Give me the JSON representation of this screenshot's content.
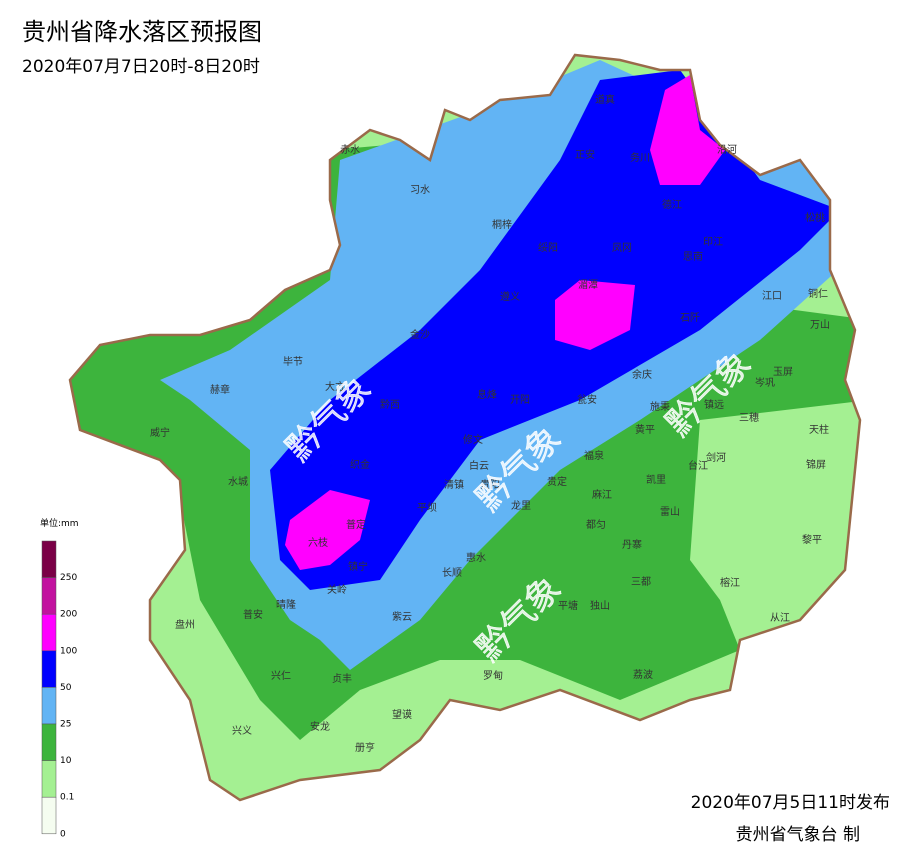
{
  "header": {
    "title": "贵州省降水落区预报图",
    "subtitle": "2020年07月7日20时-8日20时"
  },
  "legend": {
    "unit": "单位:mm",
    "levels": [
      {
        "label": "250",
        "color": "#7a0046"
      },
      {
        "label": "200",
        "color": "#c2129f"
      },
      {
        "label": "100",
        "color": "#ff00ff"
      },
      {
        "label": "50",
        "color": "#0000ff"
      },
      {
        "label": "25",
        "color": "#62b4f4"
      },
      {
        "label": "10",
        "color": "#3db43d"
      },
      {
        "label": "0.1",
        "color": "#a4f092"
      },
      {
        "label": "0",
        "color": "#f5fdf0"
      }
    ]
  },
  "watermark": "黔气象",
  "counties": [
    "道真",
    "正安",
    "务川",
    "沿河",
    "习水",
    "赤水",
    "桐梓",
    "绥阳",
    "凤冈",
    "德江",
    "印江",
    "思南",
    "松桃",
    "遵义",
    "湄潭",
    "石阡",
    "江口",
    "铜仁",
    "万山",
    "金沙",
    "毕节",
    "大方",
    "黔西",
    "息烽",
    "开阳",
    "余庆",
    "玉屏",
    "岑巩",
    "瓮安",
    "施秉",
    "镇远",
    "三穗",
    "天柱",
    "赫章",
    "威宁",
    "修文",
    "织金",
    "黄平",
    "剑河",
    "台江",
    "锦屏",
    "白云",
    "清镇",
    "贵阳",
    "龙里",
    "贵定",
    "福泉",
    "凯里",
    "麻江",
    "雷山",
    "水城",
    "平坝",
    "普定",
    "六枝",
    "惠水",
    "都匀",
    "丹寨",
    "黎平",
    "镇宁",
    "长顺",
    "三都",
    "榕江",
    "关岭",
    "普安",
    "晴隆",
    "紫云",
    "平塘",
    "独山",
    "从江",
    "盘州",
    "兴仁",
    "贞丰",
    "罗甸",
    "荔波",
    "望谟",
    "兴义",
    "安龙",
    "册亨"
  ],
  "footer": {
    "issued": "2020年07月5日11时发布",
    "maker": "贵州省气象台 制"
  }
}
